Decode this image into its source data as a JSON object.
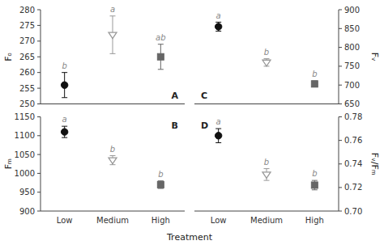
{
  "chart_data": [
    {
      "type": "scatter",
      "title": "A",
      "y_label": "Fₒ",
      "categories": [
        "Low",
        "Medium",
        "High"
      ],
      "ylim": [
        250,
        280
      ],
      "yticks": [
        250,
        255,
        260,
        265,
        270,
        275,
        280
      ],
      "tick_labels": "y",
      "grid": false,
      "series": [
        {
          "values": [
            256,
            null,
            null
          ],
          "errors": [
            4,
            null,
            null
          ],
          "color": "#111111",
          "marker": "circle"
        },
        {
          "values": [
            null,
            272,
            null
          ],
          "errors": [
            null,
            6,
            null
          ],
          "color": "#999999",
          "marker": "triangle"
        },
        {
          "values": [
            null,
            null,
            265
          ],
          "errors": [
            null,
            null,
            4
          ],
          "color": "#666666",
          "marker": "square"
        }
      ],
      "annotations": [
        "b",
        "a",
        "ab"
      ]
    },
    {
      "type": "scatter",
      "title": "B",
      "y_label": "Fₘ",
      "x_label": "Treatment",
      "categories": [
        "Low",
        "Medium",
        "High"
      ],
      "ylim": [
        900,
        1150
      ],
      "yticks": [
        900,
        950,
        1000,
        1050,
        1100,
        1150
      ],
      "grid": false,
      "series": [
        {
          "values": [
            1110,
            null,
            null
          ],
          "errors": [
            15,
            null,
            null
          ],
          "color": "#111111",
          "marker": "circle"
        },
        {
          "values": [
            null,
            1035,
            null
          ],
          "errors": [
            null,
            12,
            null
          ],
          "color": "#999999",
          "marker": "triangle"
        },
        {
          "values": [
            null,
            null,
            970
          ],
          "errors": [
            null,
            null,
            10
          ],
          "color": "#666666",
          "marker": "square"
        }
      ],
      "annotations": [
        "a",
        "b",
        "b"
      ]
    },
    {
      "type": "scatter",
      "title": "C",
      "y_label": "Fᵥ",
      "categories": [
        "Low",
        "Medium",
        "High"
      ],
      "ylim": [
        650,
        900
      ],
      "yticks": [
        650,
        700,
        750,
        800,
        850,
        900
      ],
      "tick_labels": "y",
      "grid": false,
      "series": [
        {
          "values": [
            855,
            null,
            null
          ],
          "errors": [
            12,
            null,
            null
          ],
          "color": "#111111",
          "marker": "circle"
        },
        {
          "values": [
            null,
            760,
            null
          ],
          "errors": [
            null,
            10,
            null
          ],
          "color": "#999999",
          "marker": "triangle"
        },
        {
          "values": [
            null,
            null,
            703
          ],
          "errors": [
            null,
            null,
            8
          ],
          "color": "#666666",
          "marker": "square"
        }
      ],
      "annotations": [
        "a",
        "b",
        "b"
      ]
    },
    {
      "type": "scatter",
      "title": "D",
      "y_label": "Fᵥ/Fₘ",
      "categories": [
        "Low",
        "Medium",
        "High"
      ],
      "ylim": [
        0.7,
        0.78
      ],
      "yticks": [
        {
          "value": 0.7,
          "label": "0.70"
        },
        0.72,
        0.74,
        0.76,
        0.78
      ],
      "grid": false,
      "series": [
        {
          "values": [
            0.764,
            null,
            null
          ],
          "errors": [
            0.006,
            null,
            null
          ],
          "color": "#111111",
          "marker": "circle"
        },
        {
          "values": [
            null,
            0.731,
            null
          ],
          "errors": [
            null,
            0.005,
            null
          ],
          "color": "#999999",
          "marker": "triangle"
        },
        {
          "values": [
            null,
            null,
            0.722
          ],
          "errors": [
            null,
            null,
            0.004
          ],
          "color": "#666666",
          "marker": "square"
        }
      ],
      "annotations": [
        "a",
        "b",
        "b"
      ]
    }
  ]
}
